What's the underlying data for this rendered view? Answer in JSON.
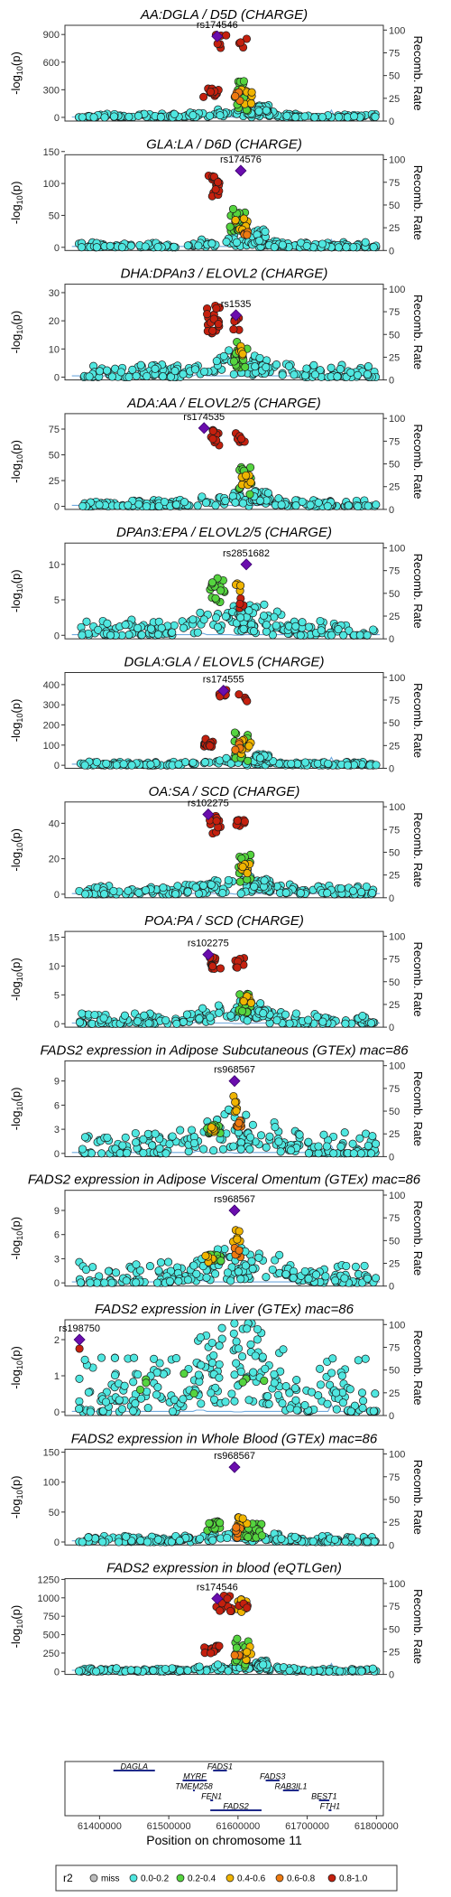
{
  "chart_data": {
    "type": "scatter",
    "xlabel": "Position on chromosome 11",
    "xticks": [
      61400000,
      61500000,
      61600000,
      61700000,
      61800000
    ],
    "xlim": [
      61350000,
      61810000
    ],
    "y2label": "Recomb. Rate",
    "y2ticks": [
      0,
      25,
      50,
      75,
      100
    ],
    "ylabel_base": "-log",
    "ylabel_sub": "10",
    "ylabel_tail": "(p)",
    "lead_color": "#6a0dad",
    "recomb_color": "#6fa8dc",
    "panels": [
      {
        "title": "AA:DGLA / D5D (CHARGE)",
        "lead_snp": "rs174546",
        "lead_x": 61570000,
        "lead_y": 880,
        "ylim": [
          -40,
          1000
        ],
        "yticks": [
          0,
          300,
          600,
          900
        ],
        "seed": 11,
        "bg_max": 40,
        "model": "charge-high"
      },
      {
        "title": "GLA:LA / D6D (CHARGE)",
        "lead_snp": "rs174576",
        "lead_x": 61604000,
        "lead_y": 120,
        "ylim": [
          -5,
          145
        ],
        "yticks": [
          0,
          50,
          100,
          150
        ],
        "seed": 23,
        "bg_max": 8,
        "model": "charge-right"
      },
      {
        "title": "DHA:DPAn3 / ELOVL2 (CHARGE)",
        "lead_snp": "rs1535",
        "lead_x": 61597000,
        "lead_y": 22,
        "ylim": [
          -1,
          33
        ],
        "yticks": [
          0,
          10,
          20,
          30
        ],
        "seed": 37,
        "bg_max": 4.5,
        "model": "charge-mid"
      },
      {
        "title": "ADA:AA / ELOVL2/5 (CHARGE)",
        "lead_snp": "rs174535",
        "lead_x": 61551000,
        "lead_y": 76,
        "ylim": [
          -3,
          90
        ],
        "yticks": [
          0,
          25,
          50,
          75
        ],
        "seed": 41,
        "bg_max": 6,
        "model": "charge-left"
      },
      {
        "title": "DPAn3:EPA / ELOVL2/5 (CHARGE)",
        "lead_snp": "rs2851682",
        "lead_x": 61612000,
        "lead_y": 10,
        "ylim": [
          -0.5,
          13
        ],
        "yticks": [
          0,
          5,
          10
        ],
        "seed": 53,
        "bg_max": 2.2,
        "model": "charge-dpa"
      },
      {
        "title": "DGLA:GLA / ELOVL5 (CHARGE)",
        "lead_snp": "rs174555",
        "lead_x": 61579000,
        "lead_y": 370,
        "ylim": [
          -15,
          460
        ],
        "yticks": [
          0,
          100,
          200,
          300,
          400
        ],
        "seed": 67,
        "bg_max": 18,
        "model": "charge-high"
      },
      {
        "title": "OA:SA / SCD (CHARGE)",
        "lead_snp": "rs102275",
        "lead_x": 61557000,
        "lead_y": 45,
        "ylim": [
          -2,
          52
        ],
        "yticks": [
          0,
          20,
          40
        ],
        "seed": 71,
        "bg_max": 5,
        "model": "charge-left"
      },
      {
        "title": "POA:PA / SCD (CHARGE)",
        "lead_snp": "rs102275",
        "lead_x": 61557000,
        "lead_y": 12,
        "ylim": [
          -0.6,
          16
        ],
        "yticks": [
          0,
          5,
          10,
          15
        ],
        "seed": 83,
        "bg_max": 1.8,
        "model": "charge-left"
      },
      {
        "title": "FADS2 expression in Adipose Subcutaneous (GTEx) mac=86",
        "lead_snp": "rs968567",
        "lead_x": 61595000,
        "lead_y": 9,
        "ylim": [
          -0.4,
          11.5
        ],
        "yticks": [
          0,
          3,
          6,
          9
        ],
        "seed": 97,
        "bg_max": 2.6,
        "model": "gtex"
      },
      {
        "title": "FADS2 expression in Adipose Visceral Omentum (GTEx) mac=86",
        "lead_snp": "rs968567",
        "lead_x": 61595000,
        "lead_y": 9,
        "ylim": [
          -0.4,
          11.5
        ],
        "yticks": [
          0,
          3,
          6,
          9
        ],
        "seed": 101,
        "bg_max": 2.6,
        "model": "gtex"
      },
      {
        "title": "FADS2 expression in Liver (GTEx) mac=86",
        "lead_snp": "rs198750",
        "lead_x": 61371000,
        "lead_y": 2,
        "ylim": [
          -0.1,
          2.55
        ],
        "yticks": [
          0,
          1,
          2
        ],
        "seed": 113,
        "bg_max": 1.5,
        "model": "liver"
      },
      {
        "title": "FADS2 expression in Whole Blood (GTEx) mac=86",
        "lead_snp": "rs968567",
        "lead_x": 61595000,
        "lead_y": 125,
        "ylim": [
          -5,
          155
        ],
        "yticks": [
          0,
          50,
          100,
          150
        ],
        "seed": 127,
        "bg_max": 10,
        "model": "blood"
      },
      {
        "title": "FADS2 expression in blood (eQTLGen)",
        "lead_snp": "rs174546",
        "lead_x": 61570000,
        "lead_y": 990,
        "ylim": [
          -40,
          1260
        ],
        "yticks": [
          0,
          250,
          500,
          750,
          1000,
          1250
        ],
        "seed": 131,
        "bg_max": 45,
        "model": "eqtlgen"
      }
    ],
    "genes": [
      {
        "name": "DAGLA",
        "start": 61420000,
        "end": 61480000,
        "row": 0
      },
      {
        "name": "FADS1",
        "start": 61564000,
        "end": 61584000,
        "row": 0
      },
      {
        "name": "MYRF",
        "start": 61520000,
        "end": 61555000,
        "row": 1
      },
      {
        "name": "FADS3",
        "start": 61640000,
        "end": 61660000,
        "row": 1
      },
      {
        "name": "TMEM258",
        "start": 61535000,
        "end": 61537000,
        "row": 2
      },
      {
        "name": "RAB3IL1",
        "start": 61665000,
        "end": 61688000,
        "row": 2
      },
      {
        "name": "FEN1",
        "start": 61560000,
        "end": 61564000,
        "row": 3
      },
      {
        "name": "BEST1",
        "start": 61717000,
        "end": 61732000,
        "row": 3
      },
      {
        "name": "FADS2",
        "start": 61560000,
        "end": 61634000,
        "row": 4
      },
      {
        "name": "FTH1",
        "start": 61731000,
        "end": 61735000,
        "row": 4
      }
    ],
    "legend": {
      "title": "r2",
      "items": [
        {
          "label": "miss",
          "color": "#bdbdbd"
        },
        {
          "label": "0.0-0.2",
          "color": "#4fe7e0"
        },
        {
          "label": "0.2-0.4",
          "color": "#55d43f"
        },
        {
          "label": "0.4-0.6",
          "color": "#f0b400"
        },
        {
          "label": "0.6-0.8",
          "color": "#ee7a10"
        },
        {
          "label": "0.8-1.0",
          "color": "#c4200e"
        }
      ]
    }
  }
}
